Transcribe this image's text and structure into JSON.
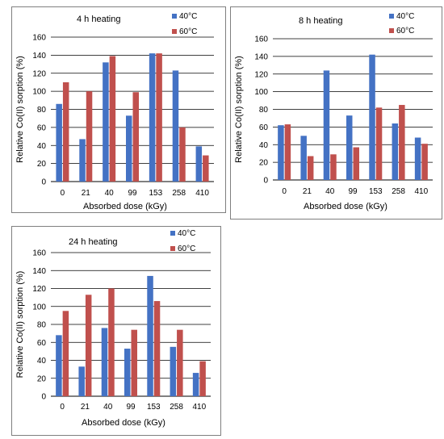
{
  "chart_data": [
    {
      "type": "bar",
      "title": "4 h heating",
      "xlabel": "Absorbed dose (kGy)",
      "ylabel": "Relative Co(II) sorption (%)",
      "categories": [
        "0",
        "21",
        "40",
        "99",
        "153",
        "258",
        "410"
      ],
      "yticks": [
        "0",
        "20",
        "40",
        "60",
        "80",
        "100",
        "120",
        "140",
        "160"
      ],
      "ylim": [
        0,
        160
      ],
      "grid": true,
      "legend": "top-right",
      "series": [
        {
          "name": "40°C",
          "color": "#4472c4",
          "values": [
            86,
            47,
            132,
            73,
            142,
            123,
            39
          ]
        },
        {
          "name": "60°C",
          "color": "#c0504d",
          "values": [
            110,
            100,
            139,
            99,
            142,
            60,
            29
          ]
        }
      ]
    },
    {
      "type": "bar",
      "title": "8 h heating",
      "xlabel": "Absorbed dose (kGy)",
      "ylabel": "Relative Co(II) sorption (%)",
      "categories": [
        "0",
        "21",
        "40",
        "99",
        "153",
        "258",
        "410"
      ],
      "yticks": [
        "0",
        "20",
        "40",
        "60",
        "80",
        "100",
        "120",
        "140",
        "160"
      ],
      "ylim": [
        0,
        160
      ],
      "grid": true,
      "legend": "top-right",
      "series": [
        {
          "name": "40°C",
          "color": "#4472c4",
          "values": [
            62,
            50,
            124,
            73,
            142,
            64,
            48
          ]
        },
        {
          "name": "60°C",
          "color": "#c0504d",
          "values": [
            63,
            27,
            29,
            37,
            82,
            85,
            41
          ]
        }
      ]
    },
    {
      "type": "bar",
      "title": "24 h heating",
      "xlabel": "Absorbed dose (kGy)",
      "ylabel": "Relative Co(II) sorption (%)",
      "categories": [
        "0",
        "21",
        "40",
        "99",
        "153",
        "258",
        "410"
      ],
      "yticks": [
        "0",
        "20",
        "40",
        "60",
        "80",
        "100",
        "120",
        "140",
        "160"
      ],
      "ylim": [
        0,
        160
      ],
      "grid": true,
      "legend": "top-right",
      "series": [
        {
          "name": "40°C",
          "color": "#4472c4",
          "values": [
            68,
            33,
            76,
            53,
            134,
            55,
            26
          ]
        },
        {
          "name": "60°C",
          "color": "#c0504d",
          "values": [
            95,
            113,
            120,
            74,
            106,
            74,
            39
          ]
        }
      ]
    }
  ]
}
